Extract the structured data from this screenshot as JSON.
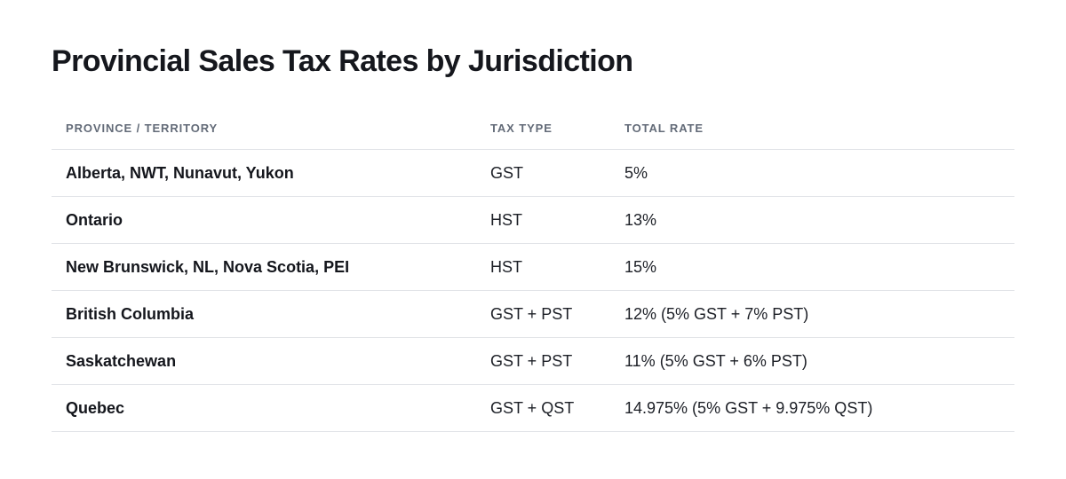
{
  "page": {
    "title": "Provincial Sales Tax Rates by Jurisdiction"
  },
  "table": {
    "headers": {
      "province": "PROVINCE / TERRITORY",
      "tax_type": "TAX TYPE",
      "total_rate": "TOTAL RATE"
    },
    "rows": [
      {
        "province": "Alberta, NWT, Nunavut, Yukon",
        "tax_type": "GST",
        "total_rate": "5%"
      },
      {
        "province": "Ontario",
        "tax_type": "HST",
        "total_rate": "13%"
      },
      {
        "province": "New Brunswick, NL, Nova Scotia, PEI",
        "tax_type": "HST",
        "total_rate": "15%"
      },
      {
        "province": "British Columbia",
        "tax_type": "GST + PST",
        "total_rate": "12% (5% GST + 7% PST)"
      },
      {
        "province": "Saskatchewan",
        "tax_type": "GST + PST",
        "total_rate": "11% (5% GST + 6% PST)"
      },
      {
        "province": "Quebec",
        "tax_type": "GST + QST",
        "total_rate": "14.975% (5% GST + 9.975% QST)"
      }
    ]
  },
  "colors": {
    "text_primary": "#14161c",
    "header_text": "#636b78",
    "divider": "#e2e4e8",
    "background": "#ffffff"
  }
}
